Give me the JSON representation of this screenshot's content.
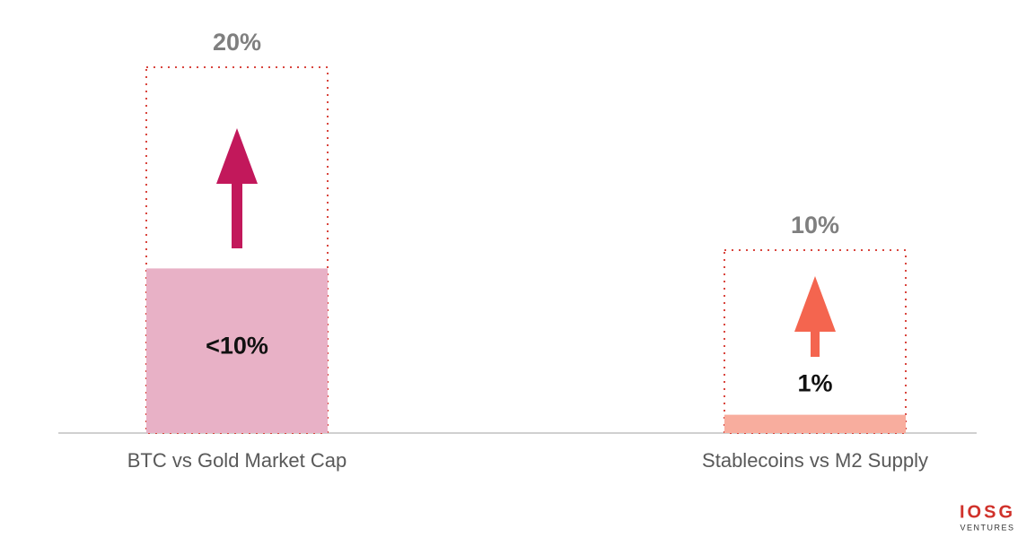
{
  "chart_data": {
    "type": "bar",
    "categories": [
      "BTC vs Gold Market Cap",
      "Stablecoins vs M2 Supply"
    ],
    "values": [
      9,
      1
    ],
    "value_labels": [
      "<10%",
      "1%"
    ],
    "targets": [
      20,
      10
    ],
    "target_labels": [
      "20%",
      "10%"
    ],
    "colors": [
      "#e8b1c6",
      "#f8ad9e"
    ],
    "arrow_colors": [
      "#c2185b",
      "#f4654f"
    ],
    "target_border_color": "#d9463e",
    "ylim": [
      0,
      20
    ]
  },
  "logo": {
    "name": "IOSG",
    "sub": "VENTURES"
  }
}
